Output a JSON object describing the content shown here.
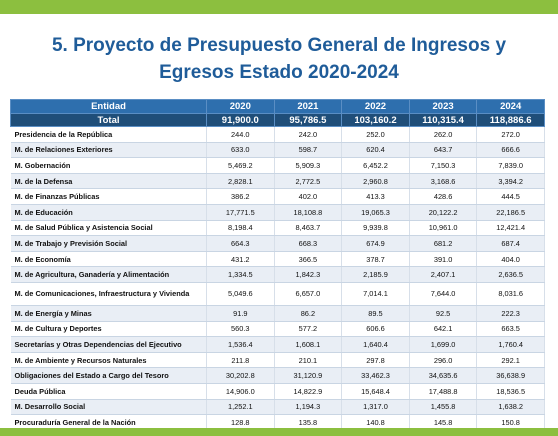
{
  "title": {
    "line1": "5. Proyecto de Presupuesto General de Ingresos y",
    "line2": "Egresos Estado 2020-2024"
  },
  "table": {
    "headers": [
      "Entidad",
      "2020",
      "2021",
      "2022",
      "2023",
      "2024"
    ],
    "total": {
      "name": "Total",
      "values": [
        "91,900.0",
        "95,786.5",
        "103,160.2",
        "110,315.4",
        "118,886.6"
      ]
    },
    "rows": [
      {
        "name": "Presidencia de la República",
        "values": [
          "244.0",
          "242.0",
          "252.0",
          "262.0",
          "272.0"
        ]
      },
      {
        "name": "M. de Relaciones Exteriores",
        "values": [
          "633.0",
          "598.7",
          "620.4",
          "643.7",
          "666.6"
        ]
      },
      {
        "name": "M. Gobernación",
        "values": [
          "5,469.2",
          "5,909.3",
          "6,452.2",
          "7,150.3",
          "7,839.0"
        ]
      },
      {
        "name": "M. de la Defensa",
        "values": [
          "2,828.1",
          "2,772.5",
          "2,960.8",
          "3,168.6",
          "3,394.2"
        ]
      },
      {
        "name": "M. de Finanzas Públicas",
        "values": [
          "386.2",
          "402.0",
          "413.3",
          "428.6",
          "444.5"
        ]
      },
      {
        "name": "M. de Educación",
        "values": [
          "17,771.5",
          "18,108.8",
          "19,065.3",
          "20,122.2",
          "22,186.5"
        ]
      },
      {
        "name": "M. de Salud Pública y Asistencia Social",
        "values": [
          "8,198.4",
          "8,463.7",
          "9,939.8",
          "10,961.0",
          "12,421.4"
        ]
      },
      {
        "name": "M. de Trabajo y Previsión Social",
        "values": [
          "664.3",
          "668.3",
          "674.9",
          "681.2",
          "687.4"
        ]
      },
      {
        "name": "M. de Economía",
        "values": [
          "431.2",
          "366.5",
          "378.7",
          "391.0",
          "404.0"
        ]
      },
      {
        "name": "M. de Agricultura, Ganadería y Alimentación",
        "values": [
          "1,334.5",
          "1,842.3",
          "2,185.9",
          "2,407.1",
          "2,636.5"
        ]
      },
      {
        "name": "M. de Comunicaciones, Infraestructura y Vivienda",
        "values": [
          "5,049.6",
          "6,657.0",
          "7,014.1",
          "7,644.0",
          "8,031.6"
        ],
        "tall": true
      },
      {
        "name": "M. de Energía y Minas",
        "values": [
          "91.9",
          "86.2",
          "89.5",
          "92.5",
          "222.3"
        ]
      },
      {
        "name": "M. de Cultura y Deportes",
        "values": [
          "560.3",
          "577.2",
          "606.6",
          "642.1",
          "663.5"
        ]
      },
      {
        "name": "Secretarías y Otras Dependencias del Ejecutivo",
        "values": [
          "1,536.4",
          "1,608.1",
          "1,640.4",
          "1,699.0",
          "1,760.4"
        ]
      },
      {
        "name": "M. de Ambiente y Recursos Naturales",
        "values": [
          "211.8",
          "210.1",
          "297.8",
          "296.0",
          "292.1"
        ]
      },
      {
        "name": "Obligaciones del Estado a Cargo del Tesoro",
        "values": [
          "30,202.8",
          "31,120.9",
          "33,462.3",
          "34,635.6",
          "36,638.9"
        ]
      },
      {
        "name": "Deuda Pública",
        "values": [
          "14,906.0",
          "14,822.9",
          "15,648.4",
          "17,488.8",
          "18,536.5"
        ]
      },
      {
        "name": "M. Desarrollo Social",
        "values": [
          "1,252.1",
          "1,194.3",
          "1,317.0",
          "1,455.8",
          "1,638.2"
        ]
      },
      {
        "name": "Procuraduría General de la Nación",
        "values": [
          "128.8",
          "135.8",
          "140.8",
          "145.8",
          "150.8"
        ]
      }
    ]
  },
  "colors": {
    "accent_green": "#8cbf3f",
    "title_blue": "#1f5c99",
    "header_blue": "#2e6fae",
    "total_navy": "#1f4e79"
  }
}
